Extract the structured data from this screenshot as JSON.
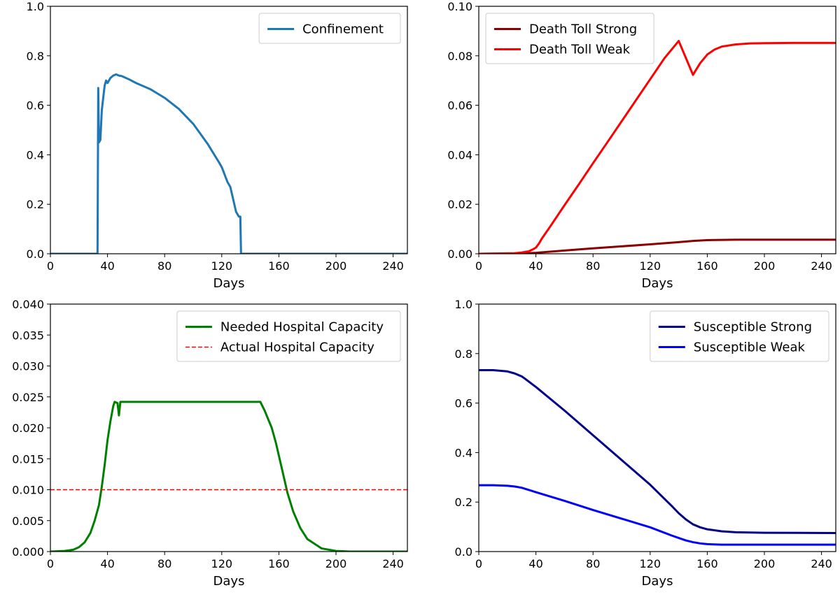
{
  "chart_data": [
    {
      "type": "line",
      "xlabel": "Days",
      "ylabel": "",
      "xlim": [
        0,
        250
      ],
      "ylim": [
        0,
        1.0
      ],
      "xticks": [
        "0",
        "40",
        "80",
        "120",
        "160",
        "200",
        "240"
      ],
      "yticks": [
        "0.0",
        "0.2",
        "0.4",
        "0.6",
        "0.8",
        "1.0"
      ],
      "grid": false,
      "legend_position": "top-right",
      "series": [
        {
          "name": "Confinement",
          "color": "#1f77b4",
          "style": "solid",
          "points": [
            [
              0,
              0
            ],
            [
              33,
              0
            ],
            [
              33.5,
              0.67
            ],
            [
              34,
              0.45
            ],
            [
              35,
              0.46
            ],
            [
              36,
              0.58
            ],
            [
              37,
              0.63
            ],
            [
              38,
              0.68
            ],
            [
              39,
              0.7
            ],
            [
              40,
              0.69
            ],
            [
              41,
              0.7
            ],
            [
              42,
              0.71
            ],
            [
              44,
              0.72
            ],
            [
              46,
              0.725
            ],
            [
              48,
              0.72
            ],
            [
              50,
              0.718
            ],
            [
              55,
              0.705
            ],
            [
              60,
              0.69
            ],
            [
              70,
              0.665
            ],
            [
              80,
              0.63
            ],
            [
              90,
              0.585
            ],
            [
              100,
              0.525
            ],
            [
              110,
              0.445
            ],
            [
              118,
              0.37
            ],
            [
              120,
              0.35
            ],
            [
              122,
              0.32
            ],
            [
              124,
              0.29
            ],
            [
              126,
              0.27
            ],
            [
              128,
              0.22
            ],
            [
              130,
              0.17
            ],
            [
              132,
              0.15
            ],
            [
              133,
              0.15
            ],
            [
              133.5,
              0
            ],
            [
              250,
              0
            ]
          ]
        }
      ]
    },
    {
      "type": "line",
      "xlabel": "Days",
      "ylabel": "",
      "xlim": [
        0,
        250
      ],
      "ylim": [
        0,
        0.1
      ],
      "xticks": [
        "0",
        "40",
        "80",
        "120",
        "160",
        "200",
        "240"
      ],
      "yticks": [
        "0.00",
        "0.02",
        "0.04",
        "0.06",
        "0.08",
        "0.10"
      ],
      "grid": false,
      "legend_position": "top-left",
      "series": [
        {
          "name": "Death Toll Strong",
          "color": "#8b0000",
          "style": "solid",
          "points": [
            [
              0,
              0
            ],
            [
              30,
              0.0001
            ],
            [
              40,
              0.0004
            ],
            [
              60,
              0.0013
            ],
            [
              80,
              0.0022
            ],
            [
              100,
              0.003
            ],
            [
              120,
              0.0038
            ],
            [
              140,
              0.0047
            ],
            [
              150,
              0.0052
            ],
            [
              160,
              0.0055
            ],
            [
              180,
              0.0057
            ],
            [
              200,
              0.0057
            ],
            [
              250,
              0.0057
            ]
          ]
        },
        {
          "name": "Death Toll Weak",
          "color": "#ff0000",
          "style": "solid",
          "points": [
            [
              0,
              0
            ],
            [
              25,
              0.0002
            ],
            [
              30,
              0.0005
            ],
            [
              35,
              0.001
            ],
            [
              38,
              0.0018
            ],
            [
              40,
              0.0025
            ],
            [
              42,
              0.004
            ],
            [
              44,
              0.006
            ],
            [
              50,
              0.011
            ],
            [
              60,
              0.0196
            ],
            [
              70,
              0.028
            ],
            [
              80,
              0.0366
            ],
            [
              90,
              0.045
            ],
            [
              100,
              0.0535
            ],
            [
              110,
              0.062
            ],
            [
              120,
              0.0705
            ],
            [
              130,
              0.079
            ],
            [
              140,
              0.086
            ],
            [
              150,
              0.0723
            ],
            [
              150,
              0.0723
            ],
            [
              155,
              0.077
            ],
            [
              160,
              0.0805
            ],
            [
              165,
              0.0825
            ],
            [
              170,
              0.0837
            ],
            [
              180,
              0.0846
            ],
            [
              190,
              0.085
            ],
            [
              200,
              0.0851
            ],
            [
              220,
              0.0852
            ],
            [
              250,
              0.0852
            ]
          ]
        }
      ]
    },
    {
      "type": "line",
      "xlabel": "Days",
      "ylabel": "",
      "xlim": [
        0,
        250
      ],
      "ylim": [
        0,
        0.04
      ],
      "xticks": [
        "0",
        "40",
        "80",
        "120",
        "160",
        "200",
        "240"
      ],
      "yticks": [
        "0.000",
        "0.005",
        "0.010",
        "0.015",
        "0.020",
        "0.025",
        "0.030",
        "0.035",
        "0.040"
      ],
      "grid": false,
      "legend_position": "top-right",
      "series": [
        {
          "name": "Needed Hospital Capacity",
          "color": "#008000",
          "style": "solid",
          "points": [
            [
              0,
              0
            ],
            [
              10,
              0.0001
            ],
            [
              16,
              0.0003
            ],
            [
              20,
              0.0007
            ],
            [
              24,
              0.0015
            ],
            [
              28,
              0.003
            ],
            [
              31,
              0.005
            ],
            [
              34,
              0.0075
            ],
            [
              36,
              0.0105
            ],
            [
              38,
              0.014
            ],
            [
              40,
              0.018
            ],
            [
              42,
              0.021
            ],
            [
              44,
              0.0235
            ],
            [
              45,
              0.0242
            ],
            [
              46,
              0.0241
            ],
            [
              47,
              0.024
            ],
            [
              48,
              0.022
            ],
            [
              49,
              0.0242
            ],
            [
              50,
              0.0242
            ],
            [
              100,
              0.0242
            ],
            [
              147,
              0.0242
            ],
            [
              150,
              0.0228
            ],
            [
              155,
              0.02
            ],
            [
              158,
              0.0175
            ],
            [
              162,
              0.0135
            ],
            [
              166,
              0.0095
            ],
            [
              170,
              0.0065
            ],
            [
              175,
              0.0038
            ],
            [
              180,
              0.002
            ],
            [
              190,
              0.0005
            ],
            [
              200,
              0.0001
            ],
            [
              210,
              0
            ],
            [
              250,
              0
            ]
          ]
        },
        {
          "name": "Actual Hospital Capacity",
          "color": "#ff0000",
          "style": "dashed",
          "points": [
            [
              0,
              0.01
            ],
            [
              250,
              0.01
            ]
          ]
        }
      ]
    },
    {
      "type": "line",
      "xlabel": "Days",
      "ylabel": "",
      "xlim": [
        0,
        250
      ],
      "ylim": [
        0,
        1.0
      ],
      "xticks": [
        "0",
        "40",
        "80",
        "120",
        "160",
        "200",
        "240"
      ],
      "yticks": [
        "0.0",
        "0.2",
        "0.4",
        "0.6",
        "0.8",
        "1.0"
      ],
      "grid": false,
      "legend_position": "top-right",
      "series": [
        {
          "name": "Susceptible Strong",
          "color": "#00008b",
          "style": "solid",
          "points": [
            [
              0,
              0.733
            ],
            [
              10,
              0.733
            ],
            [
              20,
              0.728
            ],
            [
              25,
              0.72
            ],
            [
              30,
              0.708
            ],
            [
              32,
              0.7
            ],
            [
              40,
              0.665
            ],
            [
              60,
              0.57
            ],
            [
              80,
              0.47
            ],
            [
              100,
              0.37
            ],
            [
              120,
              0.27
            ],
            [
              135,
              0.185
            ],
            [
              140,
              0.155
            ],
            [
              145,
              0.13
            ],
            [
              150,
              0.11
            ],
            [
              155,
              0.098
            ],
            [
              160,
              0.09
            ],
            [
              170,
              0.082
            ],
            [
              180,
              0.078
            ],
            [
              200,
              0.076
            ],
            [
              250,
              0.075
            ]
          ]
        },
        {
          "name": "Susceptible Weak",
          "color": "#0000ff",
          "style": "solid",
          "points": [
            [
              0,
              0.268
            ],
            [
              10,
              0.268
            ],
            [
              20,
              0.266
            ],
            [
              25,
              0.263
            ],
            [
              30,
              0.258
            ],
            [
              40,
              0.24
            ],
            [
              60,
              0.205
            ],
            [
              80,
              0.168
            ],
            [
              100,
              0.133
            ],
            [
              120,
              0.098
            ],
            [
              135,
              0.065
            ],
            [
              140,
              0.055
            ],
            [
              145,
              0.045
            ],
            [
              150,
              0.038
            ],
            [
              155,
              0.033
            ],
            [
              160,
              0.03
            ],
            [
              170,
              0.028
            ],
            [
              200,
              0.028
            ],
            [
              250,
              0.028
            ]
          ]
        }
      ]
    }
  ]
}
